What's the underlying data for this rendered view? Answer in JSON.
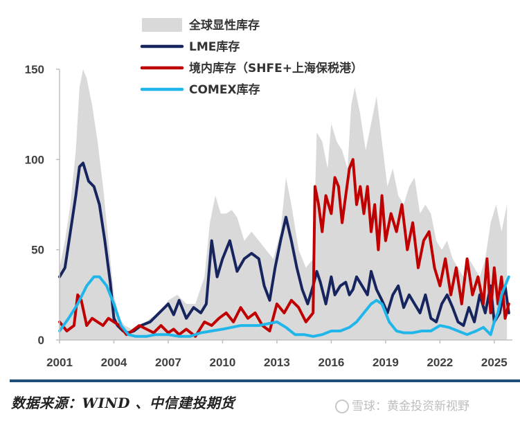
{
  "chart_data": {
    "type": "line",
    "title": "",
    "xlabel": "",
    "ylabel": "",
    "ylim": [
      0,
      150
    ],
    "y_ticks": [
      "0",
      "50",
      "100",
      "150"
    ],
    "x_ticks": [
      "2001",
      "2004",
      "2007",
      "2010",
      "2013",
      "2016",
      "2019",
      "2022",
      "2025"
    ],
    "x_range": [
      2001.0,
      2026.0
    ],
    "legend_position": "top-left",
    "series": [
      {
        "name": "全球显性库存",
        "style": "area",
        "color": "#d9d9d9",
        "x": [
          2001.0,
          2001.3,
          2001.6,
          2001.9,
          2002.1,
          2002.3,
          2002.5,
          2002.8,
          2003.1,
          2003.4,
          2003.7,
          2004.0,
          2004.3,
          2004.6,
          2005.0,
          2005.5,
          2006.0,
          2006.5,
          2007.0,
          2007.5,
          2008.0,
          2008.5,
          2009.0,
          2009.3,
          2009.6,
          2009.9,
          2010.2,
          2010.5,
          2010.8,
          2011.2,
          2011.6,
          2012.0,
          2012.4,
          2012.8,
          2013.2,
          2013.5,
          2013.8,
          2014.2,
          2014.6,
          2015.0,
          2015.2,
          2015.5,
          2015.8,
          2016.0,
          2016.3,
          2016.6,
          2016.9,
          2017.1,
          2017.3,
          2017.6,
          2017.9,
          2018.2,
          2018.5,
          2018.8,
          2019.1,
          2019.4,
          2019.7,
          2020.0,
          2020.3,
          2020.6,
          2020.9,
          2021.2,
          2021.5,
          2021.8,
          2022.1,
          2022.4,
          2022.7,
          2023.0,
          2023.3,
          2023.6,
          2023.9,
          2024.2,
          2024.5,
          2024.8,
          2025.1,
          2025.4,
          2025.7
        ],
        "values": [
          40,
          55,
          75,
          105,
          140,
          150,
          145,
          130,
          110,
          85,
          55,
          25,
          12,
          8,
          6,
          8,
          12,
          15,
          22,
          25,
          20,
          20,
          35,
          65,
          80,
          70,
          70,
          72,
          68,
          55,
          60,
          55,
          50,
          45,
          60,
          90,
          75,
          50,
          40,
          45,
          115,
          110,
          95,
          120,
          110,
          105,
          95,
          130,
          140,
          125,
          105,
          120,
          135,
          110,
          85,
          95,
          80,
          75,
          85,
          90,
          70,
          75,
          70,
          55,
          50,
          55,
          45,
          40,
          35,
          45,
          40,
          35,
          45,
          65,
          75,
          60,
          75
        ]
      },
      {
        "name": "LME库存",
        "color": "#17255f",
        "x": [
          2001.0,
          2001.3,
          2001.6,
          2001.9,
          2002.1,
          2002.3,
          2002.6,
          2002.9,
          2003.2,
          2003.5,
          2003.8,
          2004.0,
          2004.2,
          2004.5,
          2004.8,
          2005.1,
          2005.5,
          2006.0,
          2006.5,
          2007.0,
          2007.3,
          2007.6,
          2008.0,
          2008.4,
          2008.8,
          2009.1,
          2009.4,
          2009.7,
          2010.0,
          2010.4,
          2010.8,
          2011.2,
          2011.6,
          2012.0,
          2012.3,
          2012.6,
          2012.9,
          2013.2,
          2013.5,
          2013.8,
          2014.1,
          2014.4,
          2014.7,
          2015.0,
          2015.2,
          2015.4,
          2015.7,
          2016.0,
          2016.2,
          2016.5,
          2016.8,
          2017.0,
          2017.2,
          2017.4,
          2017.7,
          2018.0,
          2018.2,
          2018.5,
          2018.8,
          2019.1,
          2019.4,
          2019.7,
          2020.0,
          2020.3,
          2020.6,
          2020.9,
          2021.2,
          2021.5,
          2021.8,
          2022.1,
          2022.4,
          2022.7,
          2023.0,
          2023.3,
          2023.6,
          2023.9,
          2024.2,
          2024.5,
          2024.8,
          2025.0,
          2025.3,
          2025.6,
          2025.8
        ],
        "values": [
          35,
          40,
          60,
          80,
          96,
          98,
          88,
          85,
          75,
          55,
          32,
          12,
          8,
          5,
          4,
          5,
          8,
          10,
          15,
          20,
          14,
          22,
          12,
          18,
          15,
          20,
          55,
          35,
          45,
          55,
          38,
          45,
          48,
          45,
          30,
          22,
          40,
          55,
          68,
          55,
          40,
          28,
          20,
          30,
          38,
          32,
          20,
          35,
          25,
          30,
          32,
          25,
          28,
          35,
          30,
          25,
          38,
          28,
          22,
          15,
          25,
          30,
          18,
          25,
          20,
          15,
          25,
          12,
          10,
          20,
          25,
          18,
          10,
          8,
          18,
          10,
          25,
          15,
          30,
          10,
          15,
          30,
          15
        ]
      },
      {
        "name": "境内库存（SHFE+上海保税港）",
        "color": "#c00000",
        "x": [
          2001.0,
          2001.4,
          2001.8,
          2002.0,
          2002.2,
          2002.5,
          2002.8,
          2003.1,
          2003.4,
          2003.7,
          2004.0,
          2004.3,
          2004.7,
          2005.0,
          2005.4,
          2005.8,
          2006.2,
          2006.6,
          2007.0,
          2007.3,
          2007.6,
          2008.0,
          2008.5,
          2009.0,
          2009.4,
          2009.8,
          2010.2,
          2010.6,
          2011.0,
          2011.4,
          2011.8,
          2012.2,
          2012.6,
          2013.0,
          2013.4,
          2013.8,
          2014.2,
          2014.6,
          2015.0,
          2015.1,
          2015.3,
          2015.5,
          2015.7,
          2016.0,
          2016.2,
          2016.4,
          2016.6,
          2016.8,
          2017.0,
          2017.2,
          2017.4,
          2017.6,
          2017.8,
          2018.0,
          2018.2,
          2018.4,
          2018.6,
          2018.8,
          2019.0,
          2019.3,
          2019.6,
          2019.9,
          2020.2,
          2020.5,
          2020.8,
          2021.1,
          2021.4,
          2021.7,
          2022.0,
          2022.3,
          2022.6,
          2022.9,
          2023.2,
          2023.5,
          2023.8,
          2024.1,
          2024.4,
          2024.6,
          2024.8,
          2025.0,
          2025.2,
          2025.4,
          2025.6,
          2025.8
        ],
        "values": [
          10,
          5,
          8,
          25,
          22,
          8,
          12,
          10,
          8,
          12,
          10,
          8,
          3,
          5,
          8,
          6,
          4,
          8,
          4,
          6,
          3,
          6,
          2,
          10,
          8,
          12,
          15,
          10,
          18,
          12,
          15,
          8,
          5,
          20,
          15,
          22,
          18,
          10,
          15,
          85,
          75,
          60,
          80,
          70,
          90,
          85,
          65,
          80,
          95,
          100,
          75,
          85,
          70,
          85,
          60,
          75,
          50,
          80,
          55,
          70,
          60,
          75,
          50,
          65,
          40,
          55,
          60,
          40,
          30,
          45,
          25,
          40,
          20,
          45,
          25,
          35,
          20,
          45,
          15,
          40,
          20,
          35,
          12,
          20
        ]
      },
      {
        "name": "COMEX库存",
        "color": "#21b6ea",
        "x": [
          2001.0,
          2001.5,
          2002.0,
          2002.5,
          2002.9,
          2003.2,
          2003.6,
          2004.0,
          2004.4,
          2004.8,
          2005.2,
          2005.8,
          2006.3,
          2007.0,
          2007.6,
          2008.2,
          2008.8,
          2009.4,
          2010.0,
          2010.5,
          2011.0,
          2011.5,
          2012.0,
          2012.5,
          2013.0,
          2013.5,
          2014.0,
          2014.5,
          2015.0,
          2015.5,
          2016.0,
          2016.5,
          2017.0,
          2017.4,
          2017.8,
          2018.2,
          2018.5,
          2018.8,
          2019.2,
          2019.6,
          2020.0,
          2020.5,
          2021.0,
          2021.5,
          2022.0,
          2022.5,
          2023.0,
          2023.5,
          2024.0,
          2024.4,
          2024.8,
          2025.0,
          2025.2,
          2025.4,
          2025.6,
          2025.8
        ],
        "values": [
          5,
          12,
          20,
          30,
          35,
          35,
          30,
          20,
          8,
          3,
          2,
          2,
          3,
          3,
          2,
          2,
          4,
          5,
          6,
          7,
          8,
          8,
          8,
          9,
          10,
          7,
          3,
          3,
          2,
          3,
          5,
          5,
          7,
          10,
          15,
          20,
          22,
          20,
          10,
          5,
          4,
          4,
          5,
          5,
          8,
          7,
          5,
          3,
          5,
          7,
          3,
          10,
          15,
          25,
          30,
          35
        ]
      }
    ],
    "source": "数据来源：WIND 、中信建投期货"
  },
  "footer": {
    "source_label": "数据来源：WIND 、中信建投期货",
    "watermark": "雪球：黄金投资新视野"
  }
}
